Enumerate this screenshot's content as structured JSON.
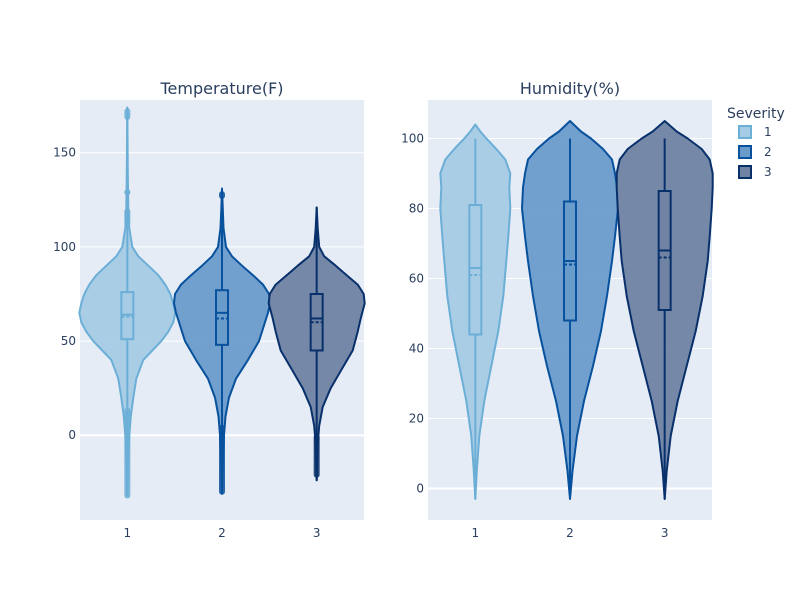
{
  "legend": {
    "title": "Severity",
    "entries": [
      {
        "label": "1",
        "fill": "#a6cbe5",
        "stroke": "#6baed6"
      },
      {
        "label": "2",
        "fill": "#6a9ccb",
        "stroke": "#08519c"
      },
      {
        "label": "3",
        "fill": "#7083a3",
        "stroke": "#08306b"
      }
    ]
  },
  "chart_data": [
    {
      "type": "violin",
      "title": "Temperature(F)",
      "xlabel": "",
      "ylabel": "",
      "categories": [
        "1",
        "2",
        "3"
      ],
      "ylim": [
        -45,
        178
      ],
      "yticks": [
        0,
        50,
        100,
        150
      ],
      "grid": true,
      "series": [
        {
          "name": "1",
          "box": {
            "q1": 51,
            "median": 64,
            "q3": 76,
            "mean": 63
          },
          "range": [
            -32,
            174
          ],
          "outlier_clusters": [
            [
              -32,
              13
            ],
            [
              113,
              119
            ],
            [
              129,
              129
            ],
            [
              169,
              172
            ]
          ],
          "density": [
            [
              -32,
              0.0
            ],
            [
              -20,
              0.01
            ],
            [
              -10,
              0.02
            ],
            [
              0,
              0.04
            ],
            [
              10,
              0.07
            ],
            [
              20,
              0.12
            ],
            [
              30,
              0.18
            ],
            [
              40,
              0.32
            ],
            [
              45,
              0.5
            ],
            [
              50,
              0.68
            ],
            [
              55,
              0.82
            ],
            [
              60,
              0.92
            ],
            [
              65,
              0.96
            ],
            [
              70,
              0.92
            ],
            [
              75,
              0.86
            ],
            [
              80,
              0.76
            ],
            [
              85,
              0.62
            ],
            [
              90,
              0.42
            ],
            [
              95,
              0.22
            ],
            [
              100,
              0.1
            ],
            [
              110,
              0.04
            ],
            [
              120,
              0.02
            ],
            [
              140,
              0.01
            ],
            [
              174,
              0.0
            ]
          ]
        },
        {
          "name": "2",
          "box": {
            "q1": 48,
            "median": 65,
            "q3": 77,
            "mean": 62
          },
          "range": [
            -31,
            131
          ],
          "outlier_clusters": [
            [
              -30,
              4
            ],
            [
              127,
              128
            ]
          ],
          "density": [
            [
              -31,
              0.0
            ],
            [
              -20,
              0.01
            ],
            [
              -10,
              0.02
            ],
            [
              0,
              0.04
            ],
            [
              10,
              0.07
            ],
            [
              20,
              0.14
            ],
            [
              30,
              0.28
            ],
            [
              40,
              0.52
            ],
            [
              50,
              0.74
            ],
            [
              55,
              0.8
            ],
            [
              60,
              0.86
            ],
            [
              65,
              0.92
            ],
            [
              70,
              0.96
            ],
            [
              75,
              0.94
            ],
            [
              80,
              0.82
            ],
            [
              85,
              0.62
            ],
            [
              90,
              0.4
            ],
            [
              95,
              0.2
            ],
            [
              100,
              0.08
            ],
            [
              110,
              0.03
            ],
            [
              120,
              0.015
            ],
            [
              131,
              0.0
            ]
          ]
        },
        {
          "name": "3",
          "box": {
            "q1": 45,
            "median": 62,
            "q3": 75,
            "mean": 60
          },
          "range": [
            -24,
            121
          ],
          "outlier_clusters": [
            [
              -21,
              -1
            ]
          ],
          "density": [
            [
              -24,
              0.0
            ],
            [
              -15,
              0.01
            ],
            [
              -5,
              0.02
            ],
            [
              5,
              0.05
            ],
            [
              15,
              0.12
            ],
            [
              25,
              0.28
            ],
            [
              35,
              0.5
            ],
            [
              45,
              0.72
            ],
            [
              55,
              0.82
            ],
            [
              62,
              0.88
            ],
            [
              70,
              0.96
            ],
            [
              75,
              0.94
            ],
            [
              80,
              0.82
            ],
            [
              85,
              0.6
            ],
            [
              90,
              0.38
            ],
            [
              95,
              0.15
            ],
            [
              100,
              0.05
            ],
            [
              110,
              0.02
            ],
            [
              121,
              0.0
            ]
          ]
        }
      ]
    },
    {
      "type": "violin",
      "title": "Humidity(%)",
      "xlabel": "",
      "ylabel": "",
      "categories": [
        "1",
        "2",
        "3"
      ],
      "ylim": [
        -9,
        111
      ],
      "yticks": [
        0,
        20,
        40,
        60,
        80,
        100
      ],
      "grid": true,
      "series": [
        {
          "name": "1",
          "box": {
            "q1": 44,
            "median": 63,
            "q3": 81,
            "mean": 61
          },
          "range": [
            -3,
            100
          ],
          "outlier_clusters": [],
          "density": [
            [
              -3,
              0.0
            ],
            [
              5,
              0.03
            ],
            [
              15,
              0.08
            ],
            [
              25,
              0.18
            ],
            [
              35,
              0.32
            ],
            [
              45,
              0.46
            ],
            [
              55,
              0.56
            ],
            [
              65,
              0.62
            ],
            [
              72,
              0.66
            ],
            [
              80,
              0.7
            ],
            [
              86,
              0.68
            ],
            [
              90,
              0.7
            ],
            [
              94,
              0.6
            ],
            [
              97,
              0.42
            ],
            [
              100,
              0.22
            ],
            [
              102,
              0.1
            ],
            [
              104,
              0.0
            ]
          ]
        },
        {
          "name": "2",
          "box": {
            "q1": 48,
            "median": 65,
            "q3": 82,
            "mean": 64
          },
          "range": [
            -3,
            100
          ],
          "outlier_clusters": [],
          "density": [
            [
              -3,
              0.0
            ],
            [
              5,
              0.05
            ],
            [
              15,
              0.14
            ],
            [
              25,
              0.28
            ],
            [
              35,
              0.46
            ],
            [
              45,
              0.62
            ],
            [
              55,
              0.74
            ],
            [
              65,
              0.84
            ],
            [
              72,
              0.9
            ],
            [
              80,
              0.96
            ],
            [
              86,
              0.94
            ],
            [
              90,
              0.9
            ],
            [
              94,
              0.84
            ],
            [
              97,
              0.66
            ],
            [
              100,
              0.42
            ],
            [
              102,
              0.22
            ],
            [
              105,
              0.0
            ]
          ]
        },
        {
          "name": "3",
          "box": {
            "q1": 51,
            "median": 68,
            "q3": 85,
            "mean": 66
          },
          "range": [
            -3,
            100
          ],
          "outlier_clusters": [],
          "density": [
            [
              -3,
              0.0
            ],
            [
              5,
              0.04
            ],
            [
              15,
              0.12
            ],
            [
              25,
              0.26
            ],
            [
              35,
              0.44
            ],
            [
              45,
              0.62
            ],
            [
              55,
              0.76
            ],
            [
              65,
              0.86
            ],
            [
              72,
              0.9
            ],
            [
              80,
              0.94
            ],
            [
              86,
              0.96
            ],
            [
              90,
              0.96
            ],
            [
              94,
              0.9
            ],
            [
              97,
              0.74
            ],
            [
              100,
              0.46
            ],
            [
              102,
              0.24
            ],
            [
              105,
              0.0
            ]
          ]
        }
      ]
    }
  ]
}
